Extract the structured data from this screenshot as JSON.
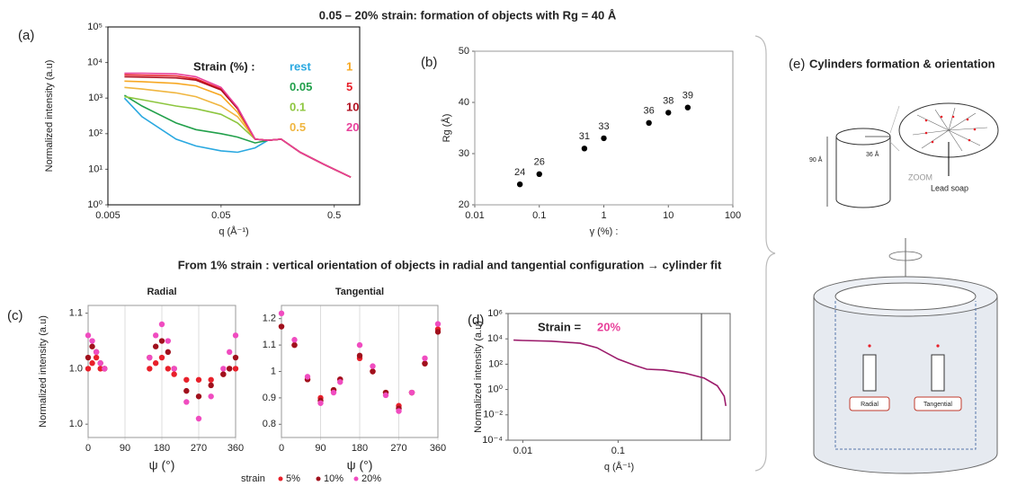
{
  "header": {
    "title": "0.05 – 20% strain: formation of objects with Rg = 40 Å",
    "subtitle": "From 1% strain : vertical orientation of objects in radial and tangential configuration → cylinder fit"
  },
  "chart_data": [
    {
      "type": "line",
      "panel": "(a)",
      "xlabel": "q (Å⁻¹)",
      "ylabel": "Normalized intensity (a.u)",
      "legend_title": "Strain (%) :",
      "log_x": true,
      "log_y": true,
      "xlim": [
        0.005,
        0.84
      ],
      "ylim": [
        1,
        100000
      ],
      "xticks": [
        0.005,
        0.05,
        0.5
      ],
      "yticks": [
        {
          "value": 1,
          "label": "10⁰"
        },
        {
          "value": 10,
          "label": "10¹"
        },
        {
          "value": 100,
          "label": "10²"
        },
        {
          "value": 1000,
          "label": "10³"
        },
        {
          "value": 10000,
          "label": "10⁴"
        },
        {
          "value": 100000,
          "label": "10⁵"
        }
      ],
      "x": [
        0.007,
        0.01,
        0.02,
        0.03,
        0.05,
        0.07,
        0.1,
        0.13,
        0.17,
        0.25,
        0.4,
        0.7
      ],
      "series": [
        {
          "name": "rest",
          "color": "#29a8e0",
          "values": [
            1000,
            300,
            70,
            45,
            33,
            30,
            40,
            65,
            70,
            30,
            14,
            6
          ]
        },
        {
          "name": "0.05",
          "color": "#22a04b",
          "values": [
            1200,
            600,
            200,
            130,
            100,
            80,
            55,
            65,
            70,
            30,
            14,
            6
          ]
        },
        {
          "name": "0.1",
          "color": "#8dc63f",
          "values": [
            1100,
            900,
            600,
            500,
            350,
            200,
            70,
            65,
            70,
            30,
            14,
            6
          ]
        },
        {
          "name": "0.5",
          "color": "#f0b640",
          "values": [
            2000,
            1800,
            1400,
            1100,
            600,
            300,
            70,
            65,
            70,
            30,
            14,
            6
          ]
        },
        {
          "name": "1",
          "color": "#f7a823",
          "values": [
            3000,
            2900,
            2600,
            2200,
            1200,
            400,
            70,
            65,
            70,
            30,
            14,
            6
          ]
        },
        {
          "name": "5",
          "color": "#e8202a",
          "values": [
            4500,
            4400,
            4200,
            3500,
            1800,
            500,
            70,
            65,
            70,
            30,
            14,
            6
          ]
        },
        {
          "name": "10",
          "color": "#b01020",
          "values": [
            4000,
            3900,
            3700,
            3200,
            1700,
            500,
            70,
            65,
            70,
            30,
            14,
            6
          ]
        },
        {
          "name": "20",
          "color": "#e8409a",
          "values": [
            5000,
            5000,
            4800,
            4000,
            2000,
            550,
            70,
            65,
            70,
            30,
            14,
            6
          ]
        }
      ]
    },
    {
      "type": "scatter",
      "panel": "(b)",
      "xlabel": "γ (%) :",
      "ylabel": "Rg  (Å)",
      "log_x": true,
      "color": "#000000",
      "xlim": [
        0.01,
        100
      ],
      "ylim": [
        20,
        50
      ],
      "xticks": [
        0.01,
        0.1,
        1,
        10,
        100
      ],
      "yticks": [
        20,
        30,
        40,
        50
      ],
      "x": [
        0.05,
        0.1,
        0.5,
        1,
        5,
        10,
        20
      ],
      "values": [
        24,
        26,
        31,
        33,
        36,
        38,
        39
      ]
    },
    {
      "type": "scatter",
      "panel": "(c)",
      "title": "Radial",
      "xlabel": "ψ (°)",
      "ylabel": "Normalized intensity (a.u)",
      "legend_title": "strain",
      "xgrid": true,
      "xlim": [
        0,
        360
      ],
      "ylim": [
        0.958,
        1.077
      ],
      "xticks": [
        0,
        90,
        180,
        270,
        360
      ],
      "yticks": [
        {
          "value": 0.97,
          "label": "1.0"
        },
        {
          "value": 1.02,
          "label": "1.0"
        },
        {
          "value": 1.07,
          "label": "1.1"
        }
      ],
      "x": [
        0,
        10,
        20,
        30,
        40,
        90,
        150,
        165,
        180,
        195,
        210,
        240,
        270,
        300,
        330,
        345,
        360
      ],
      "series": [
        {
          "name": "5%",
          "color": "#e8202a",
          "values": [
            1.02,
            1.025,
            1.03,
            1.02,
            1.02,
            null,
            1.02,
            1.025,
            1.03,
            1.02,
            1.015,
            1.01,
            1.01,
            1.01,
            1.015,
            1.02,
            1.02
          ]
        },
        {
          "name": "10%",
          "color": "#a0101c",
          "values": [
            1.03,
            1.04,
            1.035,
            1.025,
            1.02,
            null,
            1.03,
            1.04,
            1.045,
            1.035,
            1.02,
            1.0,
            0.995,
            1.005,
            1.015,
            1.02,
            1.03
          ]
        },
        {
          "name": "20%",
          "color": "#f04cc0",
          "values": [
            1.05,
            1.045,
            1.035,
            1.025,
            1.02,
            null,
            1.03,
            1.05,
            1.06,
            1.045,
            1.02,
            0.99,
            0.975,
            0.995,
            1.02,
            1.035,
            1.05
          ]
        }
      ]
    },
    {
      "type": "scatter",
      "title": "Tangential",
      "xlabel": "ψ (°)",
      "xgrid": true,
      "xlim": [
        0,
        360
      ],
      "ylim": [
        0.75,
        1.25
      ],
      "xticks": [
        0,
        90,
        180,
        270,
        360
      ],
      "yticks": [
        0.8,
        0.9,
        1.0,
        1.1,
        1.2
      ],
      "x": [
        0,
        30,
        60,
        90,
        120,
        135,
        150,
        180,
        210,
        240,
        270,
        300,
        330,
        360
      ],
      "series": [
        {
          "color": "#e8202a",
          "values": [
            1.17,
            1.1,
            0.97,
            0.9,
            0.93,
            0.97,
            null,
            1.05,
            1.0,
            0.92,
            0.87,
            0.92,
            1.03,
            1.16
          ]
        },
        {
          "color": "#a0101c",
          "values": [
            1.17,
            1.1,
            0.97,
            0.89,
            0.93,
            0.97,
            null,
            1.06,
            1.0,
            0.92,
            0.86,
            0.92,
            1.03,
            1.15
          ]
        },
        {
          "color": "#f04cc0",
          "values": [
            1.22,
            1.12,
            0.98,
            0.88,
            0.92,
            0.96,
            null,
            1.1,
            1.02,
            0.91,
            0.85,
            0.92,
            1.05,
            1.18
          ]
        }
      ]
    },
    {
      "type": "line",
      "panel": "(d)",
      "xlabel": "q (Å⁻¹)",
      "ylabel": "Normalized intensity (a.u)",
      "annotation": "Strain =",
      "annotation_color": "#e8409a",
      "log_x": true,
      "log_y": true,
      "xlim": [
        0.007,
        1.5
      ],
      "ylim": [
        0.0001,
        1000000
      ],
      "vline": 0.75,
      "xticks": [
        0.01,
        0.1
      ],
      "yticks": [
        {
          "value": 0.0001,
          "label": "10⁻⁴"
        },
        {
          "value": 0.01,
          "label": "10⁻²"
        },
        {
          "value": 1,
          "label": "10⁰"
        },
        {
          "value": 100,
          "label": "10²"
        },
        {
          "value": 10000,
          "label": "10⁴"
        },
        {
          "value": 1000000,
          "label": "10⁶"
        }
      ],
      "x": [
        0.008,
        0.01,
        0.02,
        0.04,
        0.06,
        0.1,
        0.15,
        0.2,
        0.3,
        0.5,
        0.8,
        1.1,
        1.3,
        1.35
      ],
      "series": [
        {
          "name": "20%",
          "color": "#9b1b6b",
          "values": [
            8000,
            7500,
            6500,
            4500,
            2000,
            250,
            80,
            40,
            35,
            20,
            8,
            2,
            0.3,
            0.05
          ]
        }
      ]
    }
  ],
  "panel_e": {
    "label": "(e)",
    "title": "Cylinders formation & orientation",
    "diameter": "36 Å",
    "height": "90 Å",
    "zoom": "ZOOM",
    "lead_soap": "Lead soap",
    "radial": "Radial",
    "tangential": "Tangential"
  }
}
